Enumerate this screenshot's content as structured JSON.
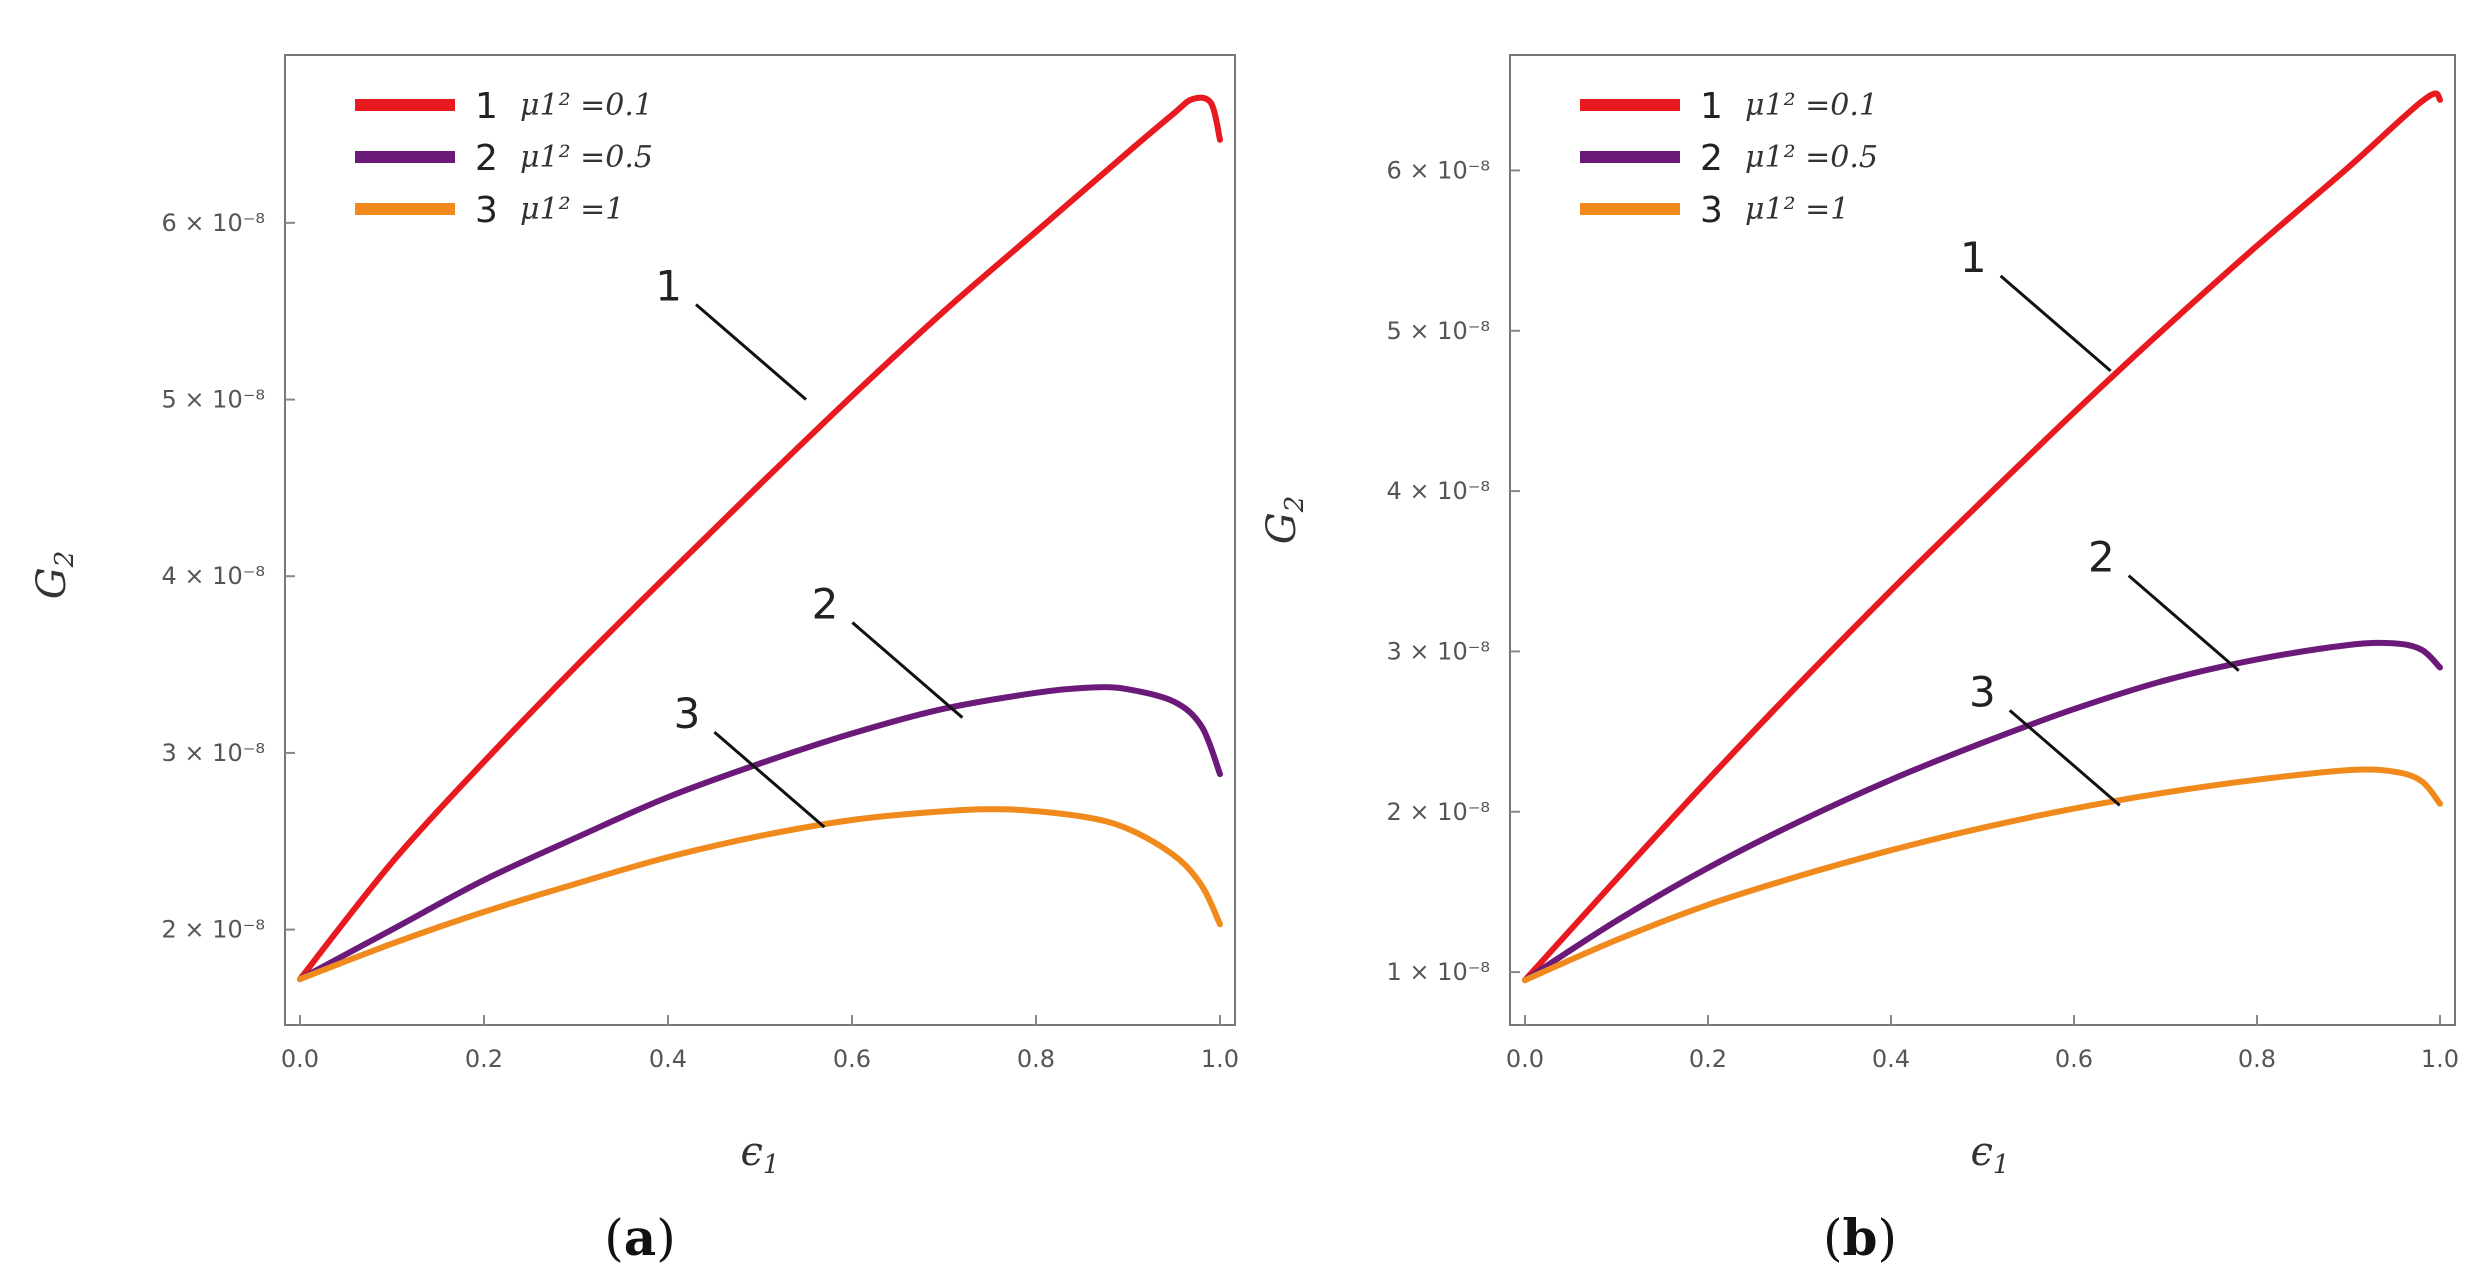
{
  "chart_data": [
    {
      "type": "line",
      "caption_open": "(",
      "caption_letter": "a",
      "caption_close": ")",
      "xlabel": "ϵ1",
      "ylabel": "G2",
      "xlim": [
        0,
        1
      ],
      "ylim": [
        1.46e-08,
        6.95e-08
      ],
      "x_ticks": [
        "0.0",
        "0.2",
        "0.4",
        "0.6",
        "0.8",
        "1.0"
      ],
      "x_tick_values": [
        0,
        0.2,
        0.4,
        0.6,
        0.8,
        1.0
      ],
      "y_ticks": [
        "2 × 10⁻⁸",
        "3 × 10⁻⁸",
        "4 × 10⁻⁸",
        "5 × 10⁻⁸",
        "6 × 10⁻⁸"
      ],
      "y_tick_values": [
        2e-08,
        3e-08,
        4e-08,
        5e-08,
        6e-08
      ],
      "legend_position": "top-left",
      "series": [
        {
          "name": "1",
          "legend": "μ1² =0.1",
          "color": "#e8191f",
          "x": [
            0,
            0.1,
            0.2,
            0.3,
            0.4,
            0.5,
            0.6,
            0.7,
            0.8,
            0.9,
            0.95,
            0.97,
            0.99,
            1.0
          ],
          "y": [
            1.72e-08,
            2.38e-08,
            2.95e-08,
            3.49e-08,
            4.01e-08,
            4.52e-08,
            5.02e-08,
            5.5e-08,
            5.95e-08,
            6.4e-08,
            6.62e-08,
            6.7e-08,
            6.68e-08,
            6.47e-08
          ],
          "annotation": "1",
          "annotation_x": 0.55,
          "annotation_y": 5e-08
        },
        {
          "name": "2",
          "legend": "μ1² =0.5",
          "color": "#6b1a7a",
          "x": [
            0,
            0.1,
            0.2,
            0.3,
            0.4,
            0.5,
            0.6,
            0.7,
            0.8,
            0.86,
            0.9,
            0.95,
            0.98,
            1.0
          ],
          "y": [
            1.72e-08,
            2e-08,
            2.28e-08,
            2.52e-08,
            2.75e-08,
            2.94e-08,
            3.11e-08,
            3.25e-08,
            3.34e-08,
            3.37e-08,
            3.36e-08,
            3.29e-08,
            3.15e-08,
            2.88e-08
          ],
          "annotation": "2",
          "annotation_x": 0.72,
          "annotation_y": 3.2e-08
        },
        {
          "name": "3",
          "legend": "μ1² =1",
          "color": "#f08a1c",
          "x": [
            0,
            0.1,
            0.2,
            0.3,
            0.4,
            0.5,
            0.6,
            0.7,
            0.77,
            0.85,
            0.9,
            0.95,
            0.98,
            1.0
          ],
          "y": [
            1.72e-08,
            1.92e-08,
            2.1e-08,
            2.26e-08,
            2.41e-08,
            2.53e-08,
            2.62e-08,
            2.67e-08,
            2.68e-08,
            2.64e-08,
            2.57e-08,
            2.42e-08,
            2.25e-08,
            2.03e-08
          ],
          "annotation": "3",
          "annotation_x": 0.57,
          "annotation_y": 2.58e-08
        }
      ]
    },
    {
      "type": "line",
      "caption_open": "(",
      "caption_letter": "b",
      "caption_close": ")",
      "xlabel": "ϵ1",
      "ylabel": "G2",
      "xlim": [
        0,
        1
      ],
      "ylim": [
        6.7e-09,
        6.72e-08
      ],
      "x_ticks": [
        "0.0",
        "0.2",
        "0.4",
        "0.6",
        "0.8",
        "1.0"
      ],
      "x_tick_values": [
        0,
        0.2,
        0.4,
        0.6,
        0.8,
        1.0
      ],
      "y_ticks": [
        "1 × 10⁻⁸",
        "2 × 10⁻⁸",
        "3 × 10⁻⁸",
        "4 × 10⁻⁸",
        "5 × 10⁻⁸",
        "6 × 10⁻⁸"
      ],
      "y_tick_values": [
        1e-08,
        2e-08,
        3e-08,
        4e-08,
        5e-08,
        6e-08
      ],
      "legend_position": "top-left",
      "series": [
        {
          "name": "1",
          "legend": "μ1² =0.1",
          "color": "#e8191f",
          "x": [
            0,
            0.1,
            0.2,
            0.3,
            0.4,
            0.5,
            0.6,
            0.7,
            0.8,
            0.9,
            0.95,
            0.98,
            0.995,
            1.0
          ],
          "y": [
            9.5e-09,
            1.58e-08,
            2.2e-08,
            2.8e-08,
            3.38e-08,
            3.94e-08,
            4.49e-08,
            5.02e-08,
            5.53e-08,
            6.02e-08,
            6.28e-08,
            6.43e-08,
            6.48e-08,
            6.44e-08
          ],
          "annotation": "1",
          "annotation_x": 0.64,
          "annotation_y": 4.75e-08
        },
        {
          "name": "2",
          "legend": "μ1² =0.5",
          "color": "#6b1a7a",
          "x": [
            0,
            0.1,
            0.2,
            0.3,
            0.4,
            0.5,
            0.6,
            0.7,
            0.8,
            0.9,
            0.95,
            0.98,
            1.0
          ],
          "y": [
            9.5e-09,
            1.32e-08,
            1.65e-08,
            1.94e-08,
            2.2e-08,
            2.43e-08,
            2.64e-08,
            2.82e-08,
            2.95e-08,
            3.04e-08,
            3.05e-08,
            3.01e-08,
            2.9e-08
          ],
          "annotation": "2",
          "annotation_x": 0.78,
          "annotation_y": 2.88e-08
        },
        {
          "name": "3",
          "legend": "μ1² =1",
          "color": "#f08a1c",
          "x": [
            0,
            0.1,
            0.2,
            0.3,
            0.4,
            0.5,
            0.6,
            0.7,
            0.8,
            0.9,
            0.95,
            0.98,
            1.0
          ],
          "y": [
            9.5e-09,
            1.2e-08,
            1.42e-08,
            1.6e-08,
            1.76e-08,
            1.9e-08,
            2.02e-08,
            2.12e-08,
            2.2e-08,
            2.26e-08,
            2.25e-08,
            2.19e-08,
            2.05e-08
          ],
          "annotation": "3",
          "annotation_x": 0.65,
          "annotation_y": 2.04e-08
        }
      ]
    }
  ]
}
